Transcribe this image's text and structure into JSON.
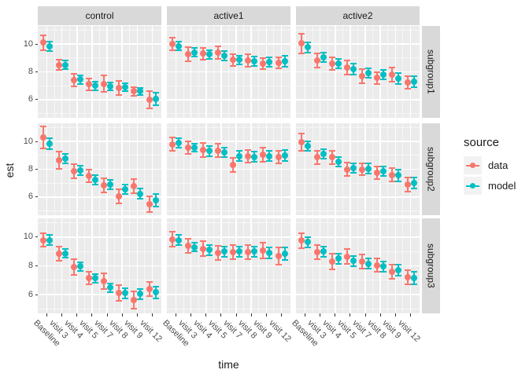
{
  "chart_data": {
    "type": "scatter",
    "subtype": "pointrange-with-errorbars, 3x3 facet grid",
    "xlabel": "time",
    "ylabel": "est",
    "x_categories": [
      "Baseline",
      "visit 3",
      "visit 4",
      "visit 5",
      "visit 7",
      "visit 8",
      "visit 9",
      "visit 12"
    ],
    "facet_cols": [
      "control",
      "active1",
      "active2"
    ],
    "facet_rows": [
      "subgroup1",
      "subgroup2",
      "subgroup3"
    ],
    "y_ticks": [
      6,
      8,
      10
    ],
    "y_minor_ticks": [
      5,
      7,
      9,
      11
    ],
    "ylim": [
      4.7,
      11.3
    ],
    "grid": true,
    "legend": {
      "title": "source",
      "position": "right",
      "entries": [
        {
          "label": "data",
          "color": "#F8766D"
        },
        {
          "label": "model",
          "color": "#00BFC4"
        }
      ]
    },
    "colors": {
      "data": "#F8766D",
      "model": "#00BFC4",
      "panel_bg": "#EBEBEB",
      "strip_bg": "#D9D9D9",
      "grid_line": "#FFFFFF",
      "axis_text": "#4D4D4D",
      "text": "#1A1A1A",
      "legend_key_bg": "#F2F2F2"
    },
    "panels": [
      {
        "col": "control",
        "row": "subgroup1",
        "data": {
          "est": [
            10.1,
            8.5,
            7.4,
            7.1,
            7.15,
            6.85,
            6.6,
            6.0
          ],
          "err": [
            0.55,
            0.35,
            0.45,
            0.4,
            0.6,
            0.5,
            0.3,
            0.6
          ]
        },
        "model": {
          "est": [
            9.85,
            8.5,
            7.45,
            7.0,
            6.95,
            6.9,
            6.6,
            6.05
          ],
          "err": [
            0.35,
            0.3,
            0.3,
            0.3,
            0.3,
            0.3,
            0.25,
            0.45
          ]
        }
      },
      {
        "col": "active1",
        "row": "subgroup1",
        "data": {
          "est": [
            10.0,
            9.25,
            9.3,
            9.4,
            8.85,
            8.8,
            8.6,
            8.65
          ],
          "err": [
            0.45,
            0.5,
            0.4,
            0.45,
            0.4,
            0.45,
            0.4,
            0.4
          ]
        },
        "model": {
          "est": [
            9.85,
            9.4,
            9.25,
            9.15,
            8.85,
            8.75,
            8.7,
            8.75
          ],
          "err": [
            0.3,
            0.3,
            0.3,
            0.35,
            0.3,
            0.35,
            0.35,
            0.4
          ]
        }
      },
      {
        "col": "active2",
        "row": "subgroup1",
        "data": {
          "est": [
            10.05,
            8.8,
            8.6,
            8.3,
            7.7,
            7.55,
            7.8,
            7.25
          ],
          "err": [
            0.7,
            0.5,
            0.45,
            0.5,
            0.5,
            0.45,
            0.5,
            0.45
          ]
        },
        "model": {
          "est": [
            9.75,
            9.05,
            8.6,
            8.2,
            7.9,
            7.8,
            7.5,
            7.3
          ],
          "err": [
            0.35,
            0.35,
            0.35,
            0.4,
            0.35,
            0.35,
            0.4,
            0.4
          ]
        }
      },
      {
        "col": "control",
        "row": "subgroup2",
        "data": {
          "est": [
            10.3,
            8.65,
            7.85,
            7.5,
            6.85,
            6.05,
            6.8,
            5.5
          ],
          "err": [
            0.8,
            0.6,
            0.5,
            0.45,
            0.5,
            0.5,
            0.5,
            0.55
          ]
        },
        "model": {
          "est": [
            9.85,
            8.75,
            7.9,
            7.25,
            6.9,
            6.55,
            6.25,
            5.75
          ],
          "err": [
            0.4,
            0.35,
            0.35,
            0.35,
            0.35,
            0.35,
            0.35,
            0.45
          ]
        }
      },
      {
        "col": "active1",
        "row": "subgroup2",
        "data": {
          "est": [
            9.8,
            9.55,
            9.4,
            9.35,
            8.3,
            8.95,
            9.05,
            8.9
          ],
          "err": [
            0.5,
            0.45,
            0.5,
            0.5,
            0.5,
            0.45,
            0.5,
            0.45
          ]
        },
        "model": {
          "est": [
            9.9,
            9.55,
            9.3,
            9.2,
            8.95,
            8.9,
            8.95,
            9.0
          ],
          "err": [
            0.35,
            0.3,
            0.35,
            0.35,
            0.35,
            0.35,
            0.35,
            0.4
          ]
        }
      },
      {
        "col": "active2",
        "row": "subgroup2",
        "data": {
          "est": [
            9.95,
            8.85,
            8.85,
            8.0,
            8.0,
            7.75,
            7.6,
            6.9
          ],
          "err": [
            0.6,
            0.5,
            0.5,
            0.5,
            0.45,
            0.45,
            0.5,
            0.5
          ]
        },
        "model": {
          "est": [
            9.65,
            9.1,
            8.55,
            8.1,
            8.05,
            7.85,
            7.55,
            7.0
          ],
          "err": [
            0.35,
            0.35,
            0.35,
            0.35,
            0.35,
            0.35,
            0.4,
            0.4
          ]
        }
      },
      {
        "col": "control",
        "row": "subgroup3",
        "data": {
          "est": [
            9.8,
            8.85,
            7.9,
            7.15,
            6.95,
            6.1,
            5.65,
            6.4
          ],
          "err": [
            0.45,
            0.5,
            0.55,
            0.45,
            0.55,
            0.55,
            0.6,
            0.5
          ]
        },
        "model": {
          "est": [
            9.8,
            8.85,
            7.95,
            7.15,
            6.5,
            6.1,
            6.05,
            6.15
          ],
          "err": [
            0.35,
            0.3,
            0.3,
            0.3,
            0.3,
            0.35,
            0.35,
            0.4
          ]
        }
      },
      {
        "col": "active1",
        "row": "subgroup3",
        "data": {
          "est": [
            9.85,
            9.4,
            9.2,
            8.9,
            8.95,
            8.95,
            9.05,
            8.7
          ],
          "err": [
            0.5,
            0.5,
            0.5,
            0.5,
            0.5,
            0.5,
            0.55,
            0.6
          ]
        },
        "model": {
          "est": [
            9.8,
            9.3,
            9.1,
            9.0,
            9.0,
            9.0,
            8.9,
            8.85
          ],
          "err": [
            0.35,
            0.3,
            0.35,
            0.35,
            0.35,
            0.35,
            0.4,
            0.45
          ]
        }
      },
      {
        "col": "active2",
        "row": "subgroup3",
        "data": {
          "est": [
            9.75,
            8.95,
            8.3,
            8.65,
            8.3,
            8.05,
            7.6,
            7.2
          ],
          "err": [
            0.5,
            0.5,
            0.55,
            0.5,
            0.5,
            0.45,
            0.5,
            0.5
          ]
        },
        "model": {
          "est": [
            9.65,
            9.0,
            8.5,
            8.35,
            8.15,
            7.95,
            7.7,
            7.15
          ],
          "err": [
            0.35,
            0.35,
            0.35,
            0.35,
            0.35,
            0.35,
            0.4,
            0.45
          ]
        }
      }
    ]
  }
}
